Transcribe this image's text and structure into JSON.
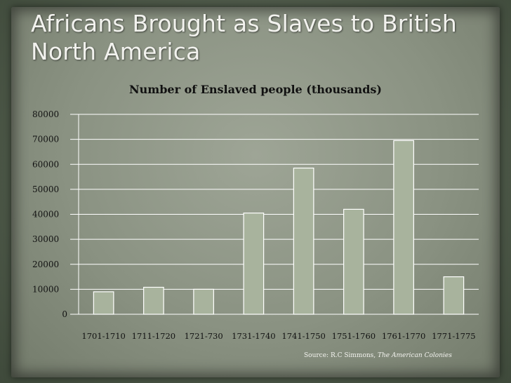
{
  "slide": {
    "title_line1": "Africans Brought as Slaves to British",
    "title_line2": "North America",
    "source_prefix": "Source: R.C Simmons, ",
    "source_title": "The American Colonies"
  },
  "colors": {
    "bar_fill": "#a8b39d",
    "bar_stroke": "#ffffff",
    "gridline": "#ffffff",
    "text": "#111111"
  },
  "chart_data": {
    "type": "bar",
    "title": "Number of Enslaved people (thousands)",
    "categories": [
      "1701-1710",
      "1711-1720",
      "1721-730",
      "1731-1740",
      "1741-1750",
      "1751-1760",
      "1761-1770",
      "1771-1775"
    ],
    "values": [
      9000,
      10800,
      10000,
      40500,
      58500,
      42000,
      69500,
      15000
    ],
    "ylim": [
      0,
      80000
    ],
    "yticks": [
      0,
      10000,
      20000,
      30000,
      40000,
      50000,
      60000,
      70000,
      80000
    ],
    "grid": true,
    "legend": "none"
  }
}
